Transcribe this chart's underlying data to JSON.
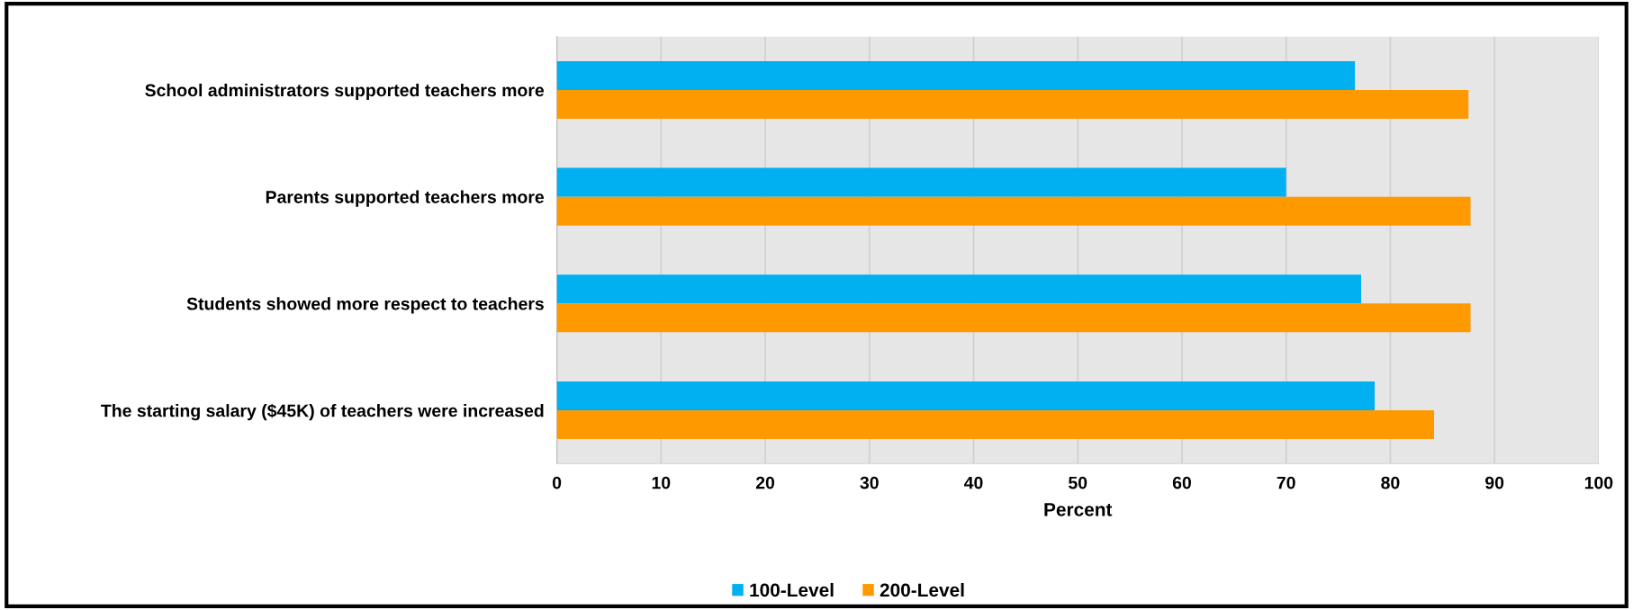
{
  "chart_data": {
    "type": "bar",
    "orientation": "horizontal",
    "xlabel": "Percent",
    "categories": [
      "School administrators supported teachers more",
      "Parents supported teachers more",
      "Students showed more respect to teachers",
      "The starting salary ($45K) of teachers were increased"
    ],
    "series": [
      {
        "name": "100-Level",
        "color": "#00b0f0",
        "values": [
          76.6,
          70.0,
          77.2,
          78.5
        ]
      },
      {
        "name": "200-Level",
        "color": "#ff9900",
        "values": [
          87.5,
          87.7,
          87.7,
          84.2
        ]
      }
    ],
    "xlim": [
      0,
      100
    ],
    "xticks": [
      0,
      10,
      20,
      30,
      40,
      50,
      60,
      70,
      80,
      90,
      100
    ],
    "grid": "x",
    "legend": "bottom"
  }
}
